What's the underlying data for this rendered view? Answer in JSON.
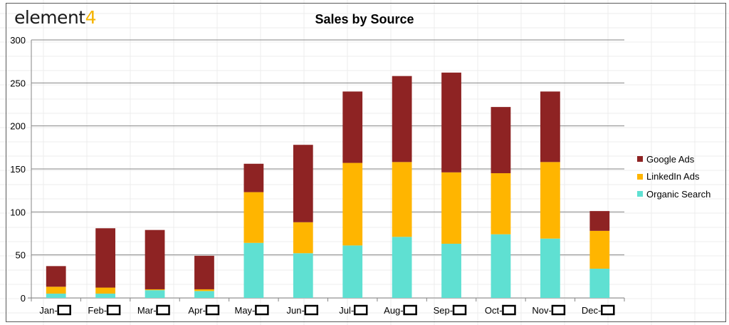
{
  "logo": {
    "text": "element",
    "accent": "4"
  },
  "chart_data": {
    "type": "bar",
    "stacked": true,
    "title": "Sales by Source",
    "categories": [
      "Jan-",
      "Feb-",
      "Mar-",
      "Apr-",
      "May-",
      "Jun-",
      "Jul-",
      "Aug-",
      "Sep-",
      "Oct-",
      "Nov-",
      "Dec-"
    ],
    "series": [
      {
        "name": "Organic Search",
        "color": "#5fe0d2",
        "values": [
          5,
          5,
          9,
          8,
          64,
          52,
          61,
          71,
          63,
          74,
          69,
          34
        ]
      },
      {
        "name": "LinkedIn Ads",
        "color": "#ffb500",
        "values": [
          8,
          7,
          1,
          2,
          59,
          36,
          96,
          87,
          83,
          71,
          89,
          44
        ]
      },
      {
        "name": "Google Ads",
        "color": "#8e2323",
        "values": [
          24,
          69,
          69,
          39,
          33,
          90,
          83,
          100,
          116,
          77,
          82,
          23
        ]
      }
    ],
    "legend_order": [
      "Google Ads",
      "LinkedIn Ads",
      "Organic Search"
    ],
    "legend_position": "right",
    "ylim": [
      0,
      300
    ],
    "yticks": [
      0,
      50,
      100,
      150,
      200,
      250,
      300
    ],
    "grid": true,
    "xlabel": "",
    "ylabel": ""
  }
}
